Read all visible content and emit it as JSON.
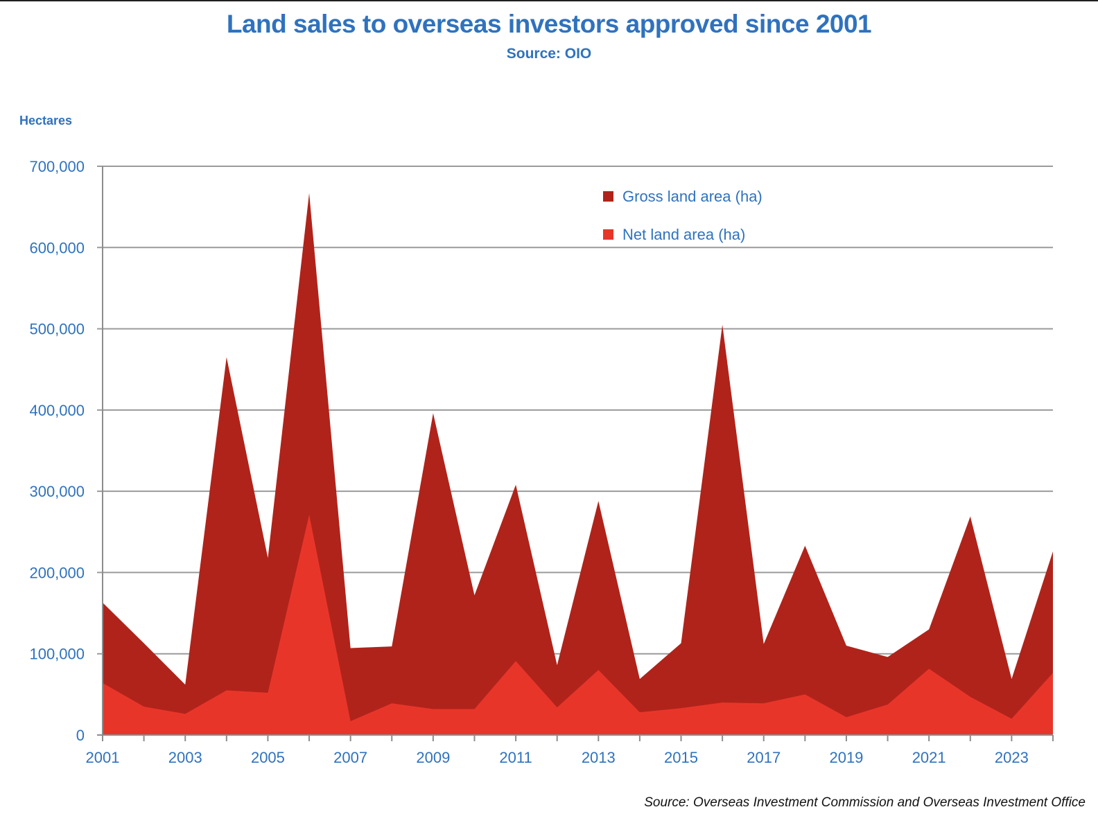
{
  "header": {
    "title": "Land sales to overseas investors approved since 2001",
    "subtitle": "Source: OIO"
  },
  "footer": {
    "source": "Source: Overseas Investment Commission and Overseas Investment Office"
  },
  "chart_data": {
    "type": "area",
    "title": "Land sales to overseas investors approved since 2001",
    "subtitle": "Source: OIO",
    "xlabel": "",
    "ylabel": "Hectares",
    "ylim": [
      0,
      700000
    ],
    "yticks": [
      0,
      100000,
      200000,
      300000,
      400000,
      500000,
      600000,
      700000
    ],
    "ytick_labels": [
      "0",
      "100,000",
      "200,000",
      "300,000",
      "400,000",
      "500,000",
      "600,000",
      "700,000"
    ],
    "x": [
      2001,
      2002,
      2003,
      2004,
      2005,
      2006,
      2007,
      2008,
      2009,
      2010,
      2011,
      2012,
      2013,
      2014,
      2015,
      2016,
      2017,
      2018,
      2019,
      2020,
      2021,
      2022,
      2023,
      2024
    ],
    "xtick_labels": [
      "2001",
      "2003",
      "2005",
      "2007",
      "2009",
      "2011",
      "2013",
      "2015",
      "2017",
      "2019",
      "2021",
      "2023"
    ],
    "grid": true,
    "legend_position": "top-center-right",
    "series": [
      {
        "name": "Gross land area (ha)",
        "color": "#b0231a",
        "values": [
          163000,
          113000,
          62000,
          465000,
          218000,
          667000,
          107000,
          109000,
          396000,
          172000,
          308000,
          86000,
          288000,
          69000,
          113000,
          505000,
          112000,
          233000,
          110000,
          96000,
          130000,
          269000,
          69000,
          226000
        ]
      },
      {
        "name": "Net land area (ha)",
        "color": "#e8352a",
        "values": [
          64000,
          35000,
          26000,
          55000,
          52000,
          271000,
          17000,
          39000,
          32000,
          32000,
          91000,
          34000,
          80000,
          28000,
          33000,
          40000,
          39000,
          50000,
          22000,
          37500,
          81500,
          47000,
          20000,
          76500
        ]
      }
    ]
  }
}
